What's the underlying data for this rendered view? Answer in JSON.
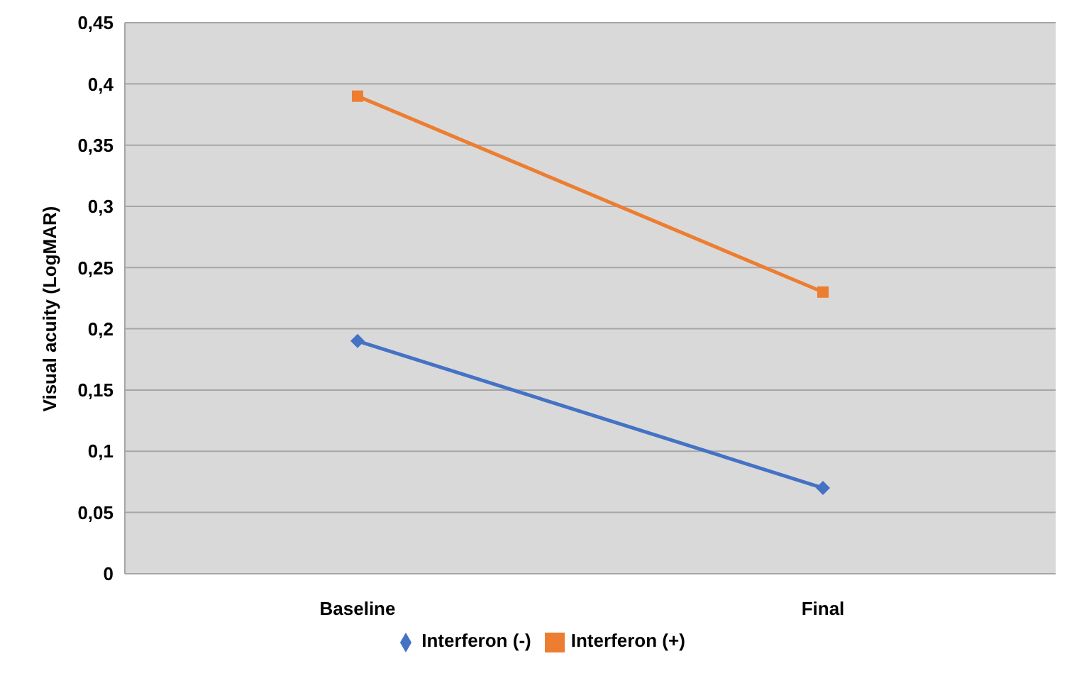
{
  "chart_data": {
    "type": "line",
    "ylabel": "Visual acuity (LogMAR)",
    "categories": [
      "Baseline",
      "Final"
    ],
    "series": [
      {
        "name": "Interferon (-)",
        "color": "#4472c4",
        "values": [
          0.19,
          0.07
        ],
        "marker": "diamond"
      },
      {
        "name": "Interferon (+)",
        "color": "#ed7d31",
        "values": [
          0.39,
          0.23
        ],
        "marker": "square"
      }
    ],
    "ylim": [
      0,
      0.45
    ],
    "yticks": [
      0,
      {
        "value": 0.05,
        "label": "0,05"
      },
      {
        "value": 0.1,
        "label": "0,1"
      },
      {
        "value": 0.15,
        "label": "0,15"
      },
      {
        "value": 0.2,
        "label": "0,2"
      },
      {
        "value": 0.25,
        "label": "0,25"
      },
      {
        "value": 0.3,
        "label": "0,3"
      },
      {
        "value": 0.35,
        "label": "0,35"
      },
      {
        "value": 0.4,
        "label": "0,4"
      },
      {
        "value": 0.45,
        "label": "0,45"
      }
    ],
    "grid": "y",
    "legend": "bottom",
    "line_style": "solid"
  }
}
